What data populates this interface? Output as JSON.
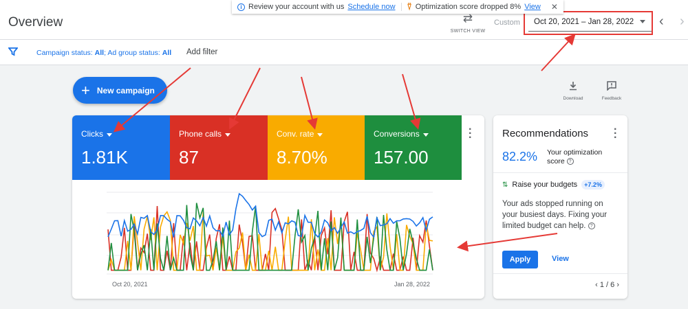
{
  "header": {
    "title": "Overview",
    "switch_view_label": "SWITCH VIEW",
    "custom_label": "Custom",
    "date_range": "Oct 20, 2021 – Jan 28, 2022"
  },
  "notification": {
    "review_text": "Review your account with us",
    "schedule_link": "Schedule now",
    "score_text": "Optimization score dropped 8%",
    "view_link": "View"
  },
  "filters": {
    "campaign_status_label": "Campaign status: ",
    "campaign_status_value": "All",
    "ad_group_status_label": "; Ad group status: ",
    "ad_group_status_value": "All",
    "add_filter": "Add filter"
  },
  "actions": {
    "new_campaign": "New campaign",
    "download": "Download",
    "feedback": "Feedback"
  },
  "metrics": [
    {
      "label": "Clicks",
      "value": "1.81K",
      "color": "#1a73e8"
    },
    {
      "label": "Phone calls",
      "value": "87",
      "color": "#d93025"
    },
    {
      "label": "Conv. rate",
      "value": "8.70%",
      "color": "#f9ab00"
    },
    {
      "label": "Conversions",
      "value": "157.00",
      "color": "#1e8e3e"
    }
  ],
  "chart": {
    "x_start": "Oct 20, 2021",
    "x_end": "Jan 28, 2022"
  },
  "recommendations": {
    "title": "Recommendations",
    "score": "82.2%",
    "score_label": "Your optimization score",
    "suggestion": "Raise your budgets",
    "suggestion_badge": "+7.2%",
    "description": "Your ads stopped running on your busiest days. Fixing your limited budget can help.",
    "apply": "Apply",
    "view": "View",
    "pager": "1 / 6"
  }
}
